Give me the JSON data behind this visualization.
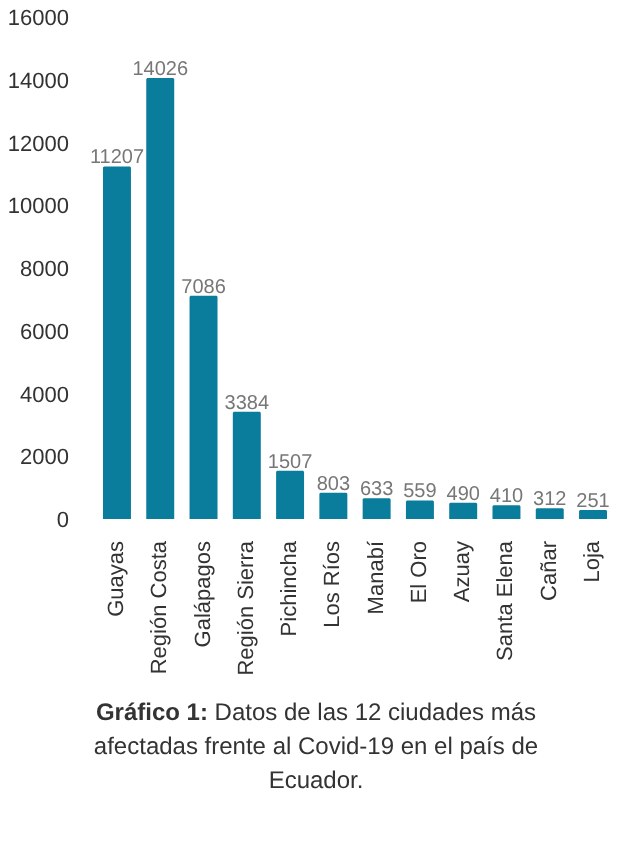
{
  "chart_data": {
    "type": "bar",
    "categories": [
      "Guayas",
      "Región Costa",
      "Galápagos",
      "Región Sierra",
      "Pichincha",
      "Los Ríos",
      "Manabí",
      "El Oro",
      "Azuay",
      "Santa Elena",
      "Cañar",
      "Loja"
    ],
    "values": [
      11207,
      14026,
      7086,
      3384,
      1507,
      803,
      633,
      559,
      490,
      410,
      312,
      251
    ],
    "color": "#0a7d9c",
    "ylim": [
      0,
      16000
    ],
    "yticks": [
      0,
      2000,
      4000,
      6000,
      8000,
      10000,
      12000,
      14000,
      16000
    ],
    "grid": false,
    "data_labels": true,
    "annotations": [
      "Gráfico 1: Datos de las 12 ciudades más afectadas frente al Covid-19 en el país de Ecuador."
    ]
  }
}
